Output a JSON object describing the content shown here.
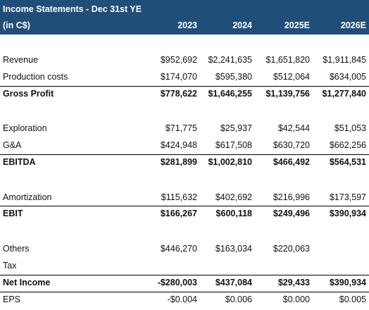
{
  "header": {
    "title": "Income Statements - Dec 31st YE",
    "unit": "(in C$)",
    "years": [
      "2023",
      "2024",
      "2025E",
      "2026E"
    ]
  },
  "rows": {
    "revenue": {
      "label": "Revenue",
      "values": [
        "$952,692",
        "$2,241,635",
        "$1,651,820",
        "$1,911,845"
      ]
    },
    "production_costs": {
      "label": "Production costs",
      "values": [
        "$174,070",
        "$595,380",
        "$512,064",
        "$634,005"
      ]
    },
    "gross_profit": {
      "label": "Gross Profit",
      "values": [
        "$778,622",
        "$1,646,255",
        "$1,139,756",
        "$1,277,840"
      ]
    },
    "exploration": {
      "label": "Exploration",
      "values": [
        "$71,775",
        "$25,937",
        "$42,544",
        "$51,053"
      ]
    },
    "g_and_a": {
      "label": "G&A",
      "values": [
        "$424,948",
        "$617,508",
        "$630,720",
        "$662,256"
      ]
    },
    "ebitda": {
      "label": "EBITDA",
      "values": [
        "$281,899",
        "$1,002,810",
        "$466,492",
        "$564,531"
      ]
    },
    "amortization": {
      "label": "Amortization",
      "values": [
        "$115,632",
        "$402,692",
        "$216,996",
        "$173,597"
      ]
    },
    "ebit": {
      "label": "EBIT",
      "values": [
        "$166,267",
        "$600,118",
        "$249,496",
        "$390,934"
      ]
    },
    "others": {
      "label": "Others",
      "values": [
        "$446,270",
        "$163,034",
        "$220,063",
        ""
      ]
    },
    "tax": {
      "label": "Tax",
      "values": [
        "",
        "",
        "",
        ""
      ]
    },
    "net_income": {
      "label": "Net Income",
      "values": [
        "-$280,003",
        "$437,084",
        "$29,433",
        "$390,934"
      ]
    },
    "eps": {
      "label": "EPS",
      "values": [
        "-$0.004",
        "$0.006",
        "$0.000",
        "$0.005"
      ]
    }
  }
}
